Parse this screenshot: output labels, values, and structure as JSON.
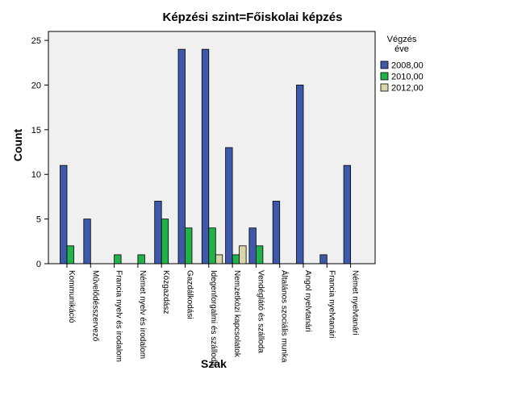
{
  "chart_data": {
    "type": "bar",
    "title": "Képzési szint=Főiskolai képzés",
    "xlabel": "Szak",
    "ylabel": "Count",
    "ylim": [
      0,
      26
    ],
    "yticks": [
      0,
      5,
      10,
      15,
      20,
      25
    ],
    "grid": false,
    "legend_placement": "right",
    "legend_title": [
      "Végzés",
      "éve"
    ],
    "categories": [
      "Kommunikáció",
      "Művelődésszervező",
      "Francia nyelv és irodalom",
      "Német nyelv és irodalom",
      "Közgazdász",
      "Gazdálkodási",
      "Idegenforgalmi és szálloda",
      "Nemzetközi kapcsolatok",
      "Vendéglátó és szálloda",
      "Általános szociális munka",
      "Angol nyelvtanári",
      "Francia nyelvtanári",
      "Német nyelvtanári"
    ],
    "series": [
      {
        "name": "2008,00",
        "color": "#3e58ac",
        "values": [
          11,
          5,
          null,
          null,
          7,
          24,
          24,
          13,
          4,
          7,
          20,
          1,
          11
        ]
      },
      {
        "name": "2010,00",
        "color": "#21b24a",
        "values": [
          2,
          null,
          1,
          1,
          5,
          4,
          4,
          1,
          2,
          null,
          null,
          null,
          null
        ]
      },
      {
        "name": "2012,00",
        "color": "#d8d5a9",
        "values": [
          null,
          null,
          null,
          null,
          null,
          null,
          1,
          2,
          null,
          null,
          null,
          null,
          null
        ]
      }
    ]
  }
}
